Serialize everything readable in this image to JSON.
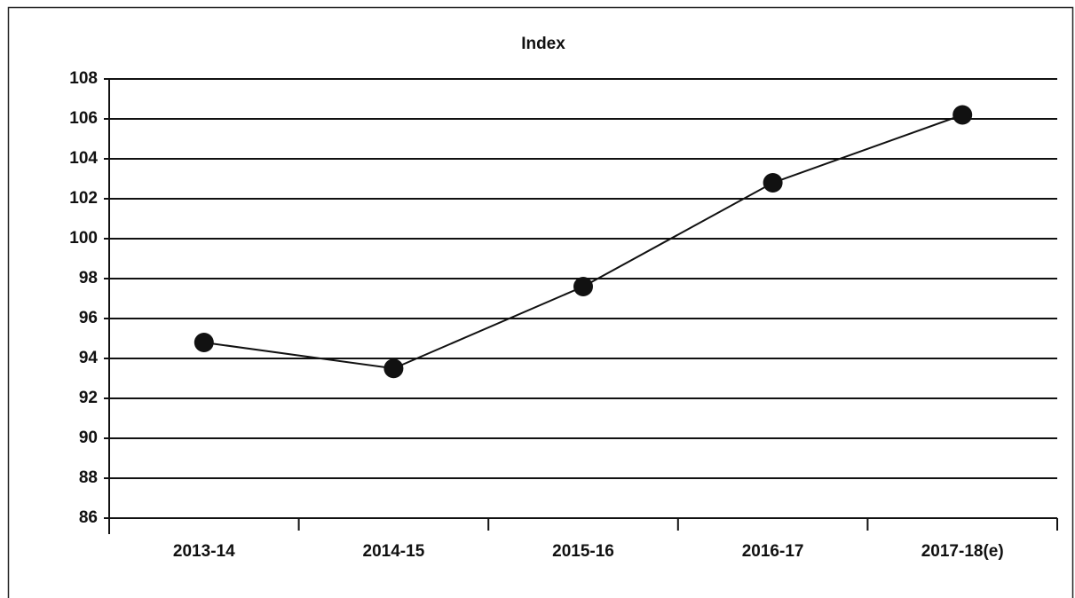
{
  "chart_data": {
    "type": "line",
    "title": "Index",
    "categories": [
      "2013-14",
      "2014-15",
      "2015-16",
      "2016-17",
      "2017-18(e)"
    ],
    "series": [
      {
        "name": "Index",
        "color": "#111111",
        "values": [
          94.8,
          93.5,
          97.6,
          102.8,
          106.2
        ]
      }
    ],
    "ylim": [
      86,
      108
    ],
    "yticks": [
      86,
      88,
      90,
      92,
      94,
      96,
      98,
      100,
      102,
      104,
      106,
      108
    ],
    "grid": true
  }
}
